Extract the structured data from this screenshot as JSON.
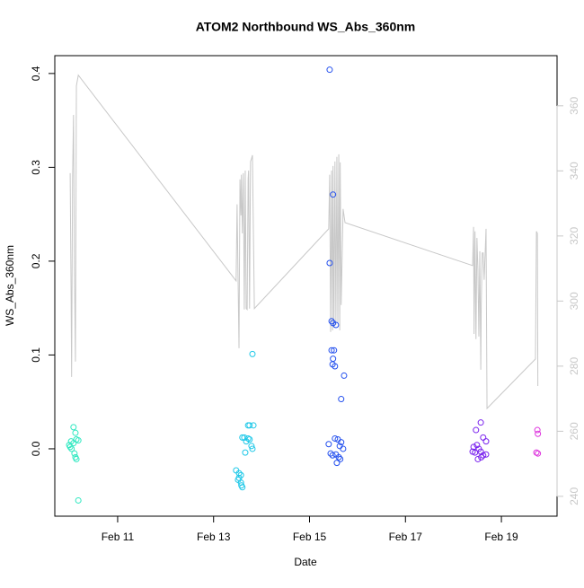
{
  "chart_data": {
    "type": "scatter",
    "title": "ATOM2 Northbound WS_Abs_360nm",
    "xlabel": "Date",
    "ylabel": "WS_Abs_360nm",
    "xlim": [
      9.69,
      20.16
    ],
    "xticks": [
      {
        "value": 11,
        "label": "Feb 11"
      },
      {
        "value": 13,
        "label": "Feb 13"
      },
      {
        "value": 15,
        "label": "Feb 15"
      },
      {
        "value": 17,
        "label": "Feb 17"
      },
      {
        "value": 19,
        "label": "Feb 19"
      }
    ],
    "ylim": [
      -0.0718,
      0.419
    ],
    "yticks": [
      {
        "value": 0,
        "label": "0.0"
      },
      0.1,
      0.2,
      0.3,
      0.4
    ],
    "y2lim": [
      233.9,
      375.4
    ],
    "y2ticks": [
      240,
      260,
      280,
      300,
      320,
      340,
      360
    ],
    "y2_color": "#c8c8c8",
    "series": [
      {
        "type": "scatter",
        "color": "#2ee8c0",
        "x": [
          10.08,
          10.12,
          10.03,
          9.99,
          10.08,
          10.14,
          10.04,
          10.18,
          10.1,
          10.12,
          10.14,
          10.18,
          10.01
        ],
        "values": [
          0.023,
          0.017,
          0.008,
          0.004,
          0.006,
          0.01,
          0.0,
          0.009,
          -0.005,
          -0.009,
          -0.011,
          -0.055,
          0.002
        ]
      },
      {
        "type": "scatter",
        "color": "#1ec8e8",
        "x": [
          13.72,
          13.75,
          13.83,
          13.81,
          13.64,
          13.72,
          13.75,
          13.68,
          13.79,
          13.81,
          13.6,
          13.66,
          13.47,
          13.53,
          13.57,
          13.51,
          13.57,
          13.58,
          13.6,
          13.53
        ],
        "values": [
          0.025,
          0.025,
          0.025,
          0.101,
          0.012,
          0.011,
          0.01,
          0.008,
          0.003,
          0.0,
          0.012,
          -0.004,
          -0.023,
          -0.026,
          -0.028,
          -0.033,
          -0.036,
          -0.039,
          -0.041,
          -0.031
        ]
      },
      {
        "type": "scatter",
        "color": "#2450ee",
        "x": [
          15.42,
          15.49,
          15.42,
          15.46,
          15.49,
          15.55,
          15.46,
          15.51,
          15.49,
          15.48,
          15.53,
          15.72,
          15.66,
          15.4,
          15.53,
          15.59,
          15.66,
          15.63,
          15.7,
          15.48,
          15.55,
          15.61,
          15.57,
          15.64,
          15.44
        ],
        "values": [
          0.404,
          0.271,
          0.198,
          0.136,
          0.134,
          0.132,
          0.105,
          0.105,
          0.096,
          0.09,
          0.088,
          0.078,
          0.053,
          0.005,
          0.011,
          0.01,
          0.007,
          0.003,
          0.0,
          -0.007,
          -0.006,
          -0.009,
          -0.015,
          -0.011,
          -0.005
        ]
      },
      {
        "type": "scatter",
        "color": "#7a22ee",
        "x": [
          18.57,
          18.47,
          18.62,
          18.68,
          18.42,
          18.49,
          18.53,
          18.45,
          18.57,
          18.62,
          18.68,
          18.51,
          18.4,
          18.58
        ],
        "values": [
          0.028,
          0.02,
          0.012,
          0.008,
          0.002,
          0.004,
          0.0,
          -0.004,
          -0.003,
          -0.007,
          -0.006,
          -0.011,
          -0.003,
          -0.009
        ]
      },
      {
        "type": "scatter",
        "color": "#dd33dd",
        "x": [
          19.75,
          19.76,
          19.73,
          19.76
        ],
        "values": [
          0.02,
          0.016,
          -0.004,
          -0.005
        ]
      },
      {
        "type": "line",
        "axis": "y2",
        "color": "#c8c8c8",
        "x": [
          10.01,
          10.03,
          10.04,
          10.06,
          10.08,
          10.1,
          10.12,
          10.14,
          10.18,
          13.47,
          13.49,
          13.53,
          13.55,
          13.57,
          13.58,
          13.6,
          13.62,
          13.64,
          13.66,
          13.68,
          13.7,
          13.72,
          13.73,
          13.75,
          13.77,
          13.79,
          13.81,
          13.85,
          15.4,
          15.42,
          15.44,
          15.46,
          15.48,
          15.49,
          15.51,
          15.53,
          15.55,
          15.57,
          15.59,
          15.61,
          15.63,
          15.64,
          15.66,
          15.7,
          15.74,
          18.4,
          18.42,
          18.43,
          18.45,
          18.47,
          18.49,
          18.51,
          18.53,
          18.55,
          18.57,
          18.58,
          18.6,
          18.62,
          18.64,
          18.66,
          18.68,
          18.7,
          19.71,
          19.73,
          19.75,
          19.76
        ],
        "values": [
          339.3,
          301.5,
          276.7,
          337.4,
          357.2,
          309.8,
          281.4,
          366.1,
          369.4,
          306.2,
          329.7,
          285.5,
          337.4,
          326.3,
          338.8,
          320.8,
          339.3,
          297.4,
          340.1,
          297.7,
          297.4,
          337.4,
          340.1,
          297.7,
          342.9,
          343.7,
          344.8,
          297.7,
          322.2,
          338.8,
          290.5,
          340.1,
          291.0,
          341.5,
          291.9,
          342.9,
          292.7,
          344.3,
          293.2,
          345.1,
          291.0,
          342.6,
          298.8,
          328.3,
          324.1,
          310.9,
          322.8,
          289.9,
          321.4,
          288.3,
          319.4,
          309.8,
          289.1,
          315.3,
          278.9,
          298.8,
          314.8,
          314.8,
          306.5,
          314.0,
          322.2,
          267.0,
          282.2,
          321.4,
          320.8,
          273.9
        ]
      }
    ]
  }
}
